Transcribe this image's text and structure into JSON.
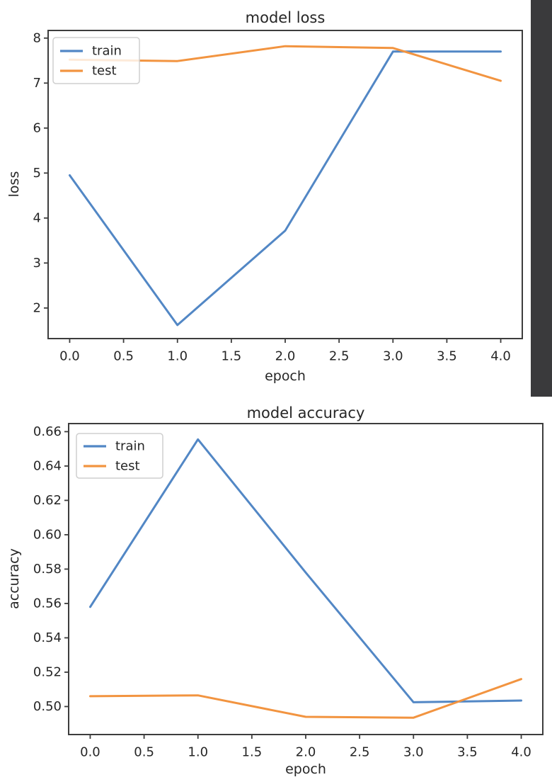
{
  "window": {
    "background": "#ffffff",
    "side_panel_color": "#3a3a3c"
  },
  "colors": {
    "train": "#5287c5",
    "test": "#f29440",
    "text": "#262626",
    "axis": "#3d3d3d"
  },
  "chart_data": [
    {
      "type": "line",
      "title": "model loss",
      "xlabel": "epoch",
      "ylabel": "loss",
      "x": [
        0,
        1,
        2,
        3,
        4
      ],
      "series": [
        {
          "name": "train",
          "color": "#5287c5",
          "values": [
            4.95,
            1.62,
            3.72,
            7.7,
            7.7
          ]
        },
        {
          "name": "test",
          "color": "#f29440",
          "values": [
            7.52,
            7.49,
            7.82,
            7.78,
            7.05
          ]
        }
      ],
      "xlim": [
        -0.2,
        4.2
      ],
      "ylim": [
        1.32,
        8.17
      ],
      "xticks": [
        0,
        0.5,
        1,
        1.5,
        2,
        2.5,
        3,
        3.5,
        4
      ],
      "xtick_labels": [
        "0.0",
        "0.5",
        "1.0",
        "1.5",
        "2.0",
        "2.5",
        "3.0",
        "3.5",
        "4.0"
      ],
      "yticks": [
        2,
        3,
        4,
        5,
        6,
        7,
        8
      ],
      "ytick_labels": [
        "2",
        "3",
        "4",
        "5",
        "6",
        "7",
        "8"
      ],
      "legend": {
        "position": "upper left",
        "entries": [
          "train",
          "test"
        ]
      },
      "grid": false
    },
    {
      "type": "line",
      "title": "model accuracy",
      "xlabel": "epoch",
      "ylabel": "accuracy",
      "x": [
        0,
        1,
        2,
        3,
        4
      ],
      "series": [
        {
          "name": "train",
          "color": "#5287c5",
          "values": [
            0.558,
            0.6555,
            0.578,
            0.5025,
            0.5035
          ]
        },
        {
          "name": "test",
          "color": "#f29440",
          "values": [
            0.506,
            0.5065,
            0.494,
            0.4935,
            0.516
          ]
        }
      ],
      "xlim": [
        -0.2,
        4.2
      ],
      "ylim": [
        0.4837,
        0.6647
      ],
      "xticks": [
        0,
        0.5,
        1,
        1.5,
        2,
        2.5,
        3,
        3.5,
        4
      ],
      "xtick_labels": [
        "0.0",
        "0.5",
        "1.0",
        "1.5",
        "2.0",
        "2.5",
        "3.0",
        "3.5",
        "4.0"
      ],
      "yticks": [
        0.5,
        0.52,
        0.54,
        0.56,
        0.58,
        0.6,
        0.62,
        0.64,
        0.66
      ],
      "ytick_labels": [
        "0.50",
        "0.52",
        "0.54",
        "0.56",
        "0.58",
        "0.60",
        "0.62",
        "0.64",
        "0.66"
      ],
      "legend": {
        "position": "upper left",
        "entries": [
          "train",
          "test"
        ]
      },
      "grid": false
    }
  ]
}
